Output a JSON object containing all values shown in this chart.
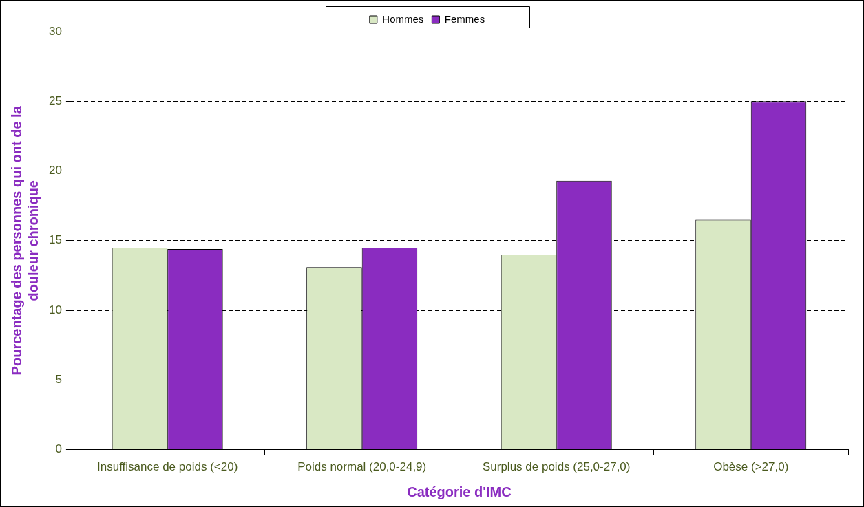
{
  "chart_data": {
    "type": "bar",
    "xlabel": "Catégorie d'IMC",
    "ylabel": "Pourcentage des personnes qui ont de la douleur chronique",
    "categories": [
      "Insuffisance de poids (<20)",
      "Poids normal (20,0-24,9)",
      "Surplus de poids (25,0-27,0)",
      "Obèse (>27,0)"
    ],
    "series": [
      {
        "name": "Hommes",
        "color": "#d9e8c4",
        "values": [
          14.5,
          13.1,
          14.0,
          16.5
        ]
      },
      {
        "name": "Femmes",
        "color": "#8a2cc0",
        "values": [
          14.4,
          14.5,
          19.3,
          25.0
        ]
      }
    ],
    "ylim": [
      0,
      30
    ],
    "yticks": [
      0,
      5,
      10,
      15,
      20,
      25,
      30
    ],
    "grid": "y",
    "legend": "top"
  }
}
